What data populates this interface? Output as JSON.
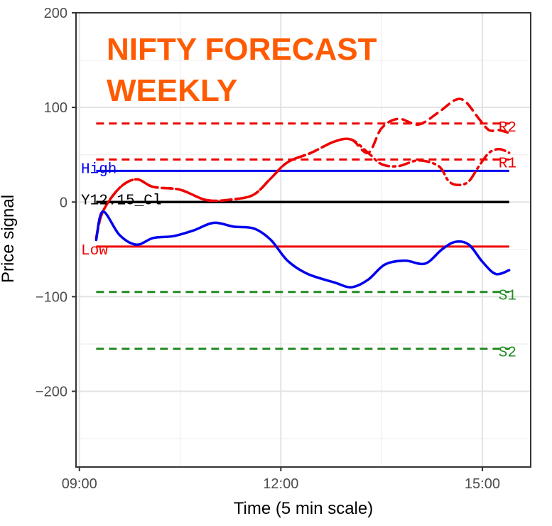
{
  "chart_data": {
    "type": "line",
    "title_lines": [
      "NIFTY FORECAST",
      "WEEKLY"
    ],
    "title_color": "#ff5a00",
    "xlabel": "Time (5 min scale)",
    "ylabel": "Price signal",
    "xlim_hours": [
      8.95,
      15.72
    ],
    "ylim": [
      -280,
      200
    ],
    "x_ticks": [
      {
        "value": 9,
        "label": "09:00"
      },
      {
        "value": 12,
        "label": "12:00"
      },
      {
        "value": 15,
        "label": "15:00"
      }
    ],
    "y_ticks": [
      {
        "value": 200,
        "label": "200"
      },
      {
        "value": 100,
        "label": "100"
      },
      {
        "value": 0,
        "label": "0"
      },
      {
        "value": -100,
        "label": "−100"
      },
      {
        "value": -200,
        "label": "−200"
      }
    ],
    "grid": true,
    "levels": [
      {
        "name": "High",
        "label": "High",
        "value": 33,
        "color": "#0000ee",
        "style": "solid",
        "label_side": "left",
        "label_dy": -4
      },
      {
        "name": "Low",
        "label": "Low",
        "value": -47,
        "color": "#ee0000",
        "style": "solid",
        "label_side": "left",
        "label_dy": 4
      },
      {
        "name": "Y12.15_Cl",
        "label": "Y12.15_Cl",
        "value": 0,
        "color": "#000000",
        "style": "solid",
        "label_side": "left",
        "label_dy": -4
      },
      {
        "name": "R2",
        "label": "R2",
        "value": 83,
        "color": "#ee0000",
        "style": "dashed",
        "label_side": "right",
        "label_dy": 4
      },
      {
        "name": "R1",
        "label": "R1",
        "value": 45,
        "color": "#ee0000",
        "style": "dashed",
        "label_side": "right",
        "label_dy": 4
      },
      {
        "name": "S1",
        "label": "S1",
        "value": -95,
        "color": "#228b22",
        "style": "dashed",
        "label_side": "right",
        "label_dy": 4
      },
      {
        "name": "S2",
        "label": "S2",
        "value": -155,
        "color": "#228b22",
        "style": "dashed",
        "label_side": "right",
        "label_dy": 4
      }
    ],
    "series": [
      {
        "color": "#ee0000",
        "style": "dashed",
        "x": [
          9.25,
          9.35,
          9.6,
          9.85,
          10.1,
          10.5,
          10.9,
          11.3,
          11.6,
          11.85,
          12.1,
          12.45,
          12.8,
          13.05,
          13.3,
          13.5,
          13.75,
          14.05,
          14.35,
          14.6,
          14.75,
          14.95,
          15.1,
          15.25,
          15.4
        ],
        "y": [
          -38,
          -10,
          15,
          24,
          16,
          13,
          2,
          3,
          8,
          25,
          42,
          52,
          64,
          66,
          52,
          78,
          88,
          82,
          95,
          108,
          106,
          88,
          76,
          76,
          73
        ]
      },
      {
        "color": "#ee0000",
        "style": "dashdot",
        "x": [
          9.25,
          9.35,
          9.6,
          9.85,
          10.1,
          10.5,
          10.9,
          11.3,
          11.6,
          11.85,
          12.1,
          12.45,
          12.8,
          13.05,
          13.3,
          13.5,
          13.75,
          14.05,
          14.35,
          14.5,
          14.65,
          14.8,
          14.95,
          15.1,
          15.25,
          15.4
        ],
        "y": [
          -38,
          -10,
          15,
          24,
          16,
          13,
          2,
          3,
          8,
          25,
          42,
          52,
          64,
          66,
          52,
          40,
          38,
          44,
          38,
          22,
          18,
          22,
          38,
          52,
          56,
          52
        ]
      },
      {
        "color": "#0000ee",
        "style": "solid",
        "x": [
          9.25,
          9.35,
          9.6,
          9.85,
          10.1,
          10.4,
          10.7,
          11.0,
          11.3,
          11.6,
          11.85,
          12.1,
          12.4,
          12.8,
          13.05,
          13.3,
          13.55,
          13.85,
          14.15,
          14.4,
          14.6,
          14.8,
          15.0,
          15.2,
          15.4
        ],
        "y": [
          -40,
          -10,
          -35,
          -45,
          -38,
          -36,
          -30,
          -22,
          -26,
          -28,
          -40,
          -62,
          -76,
          -85,
          -90,
          -82,
          -66,
          -62,
          -65,
          -50,
          -42,
          -45,
          -63,
          -76,
          -72
        ]
      }
    ]
  }
}
